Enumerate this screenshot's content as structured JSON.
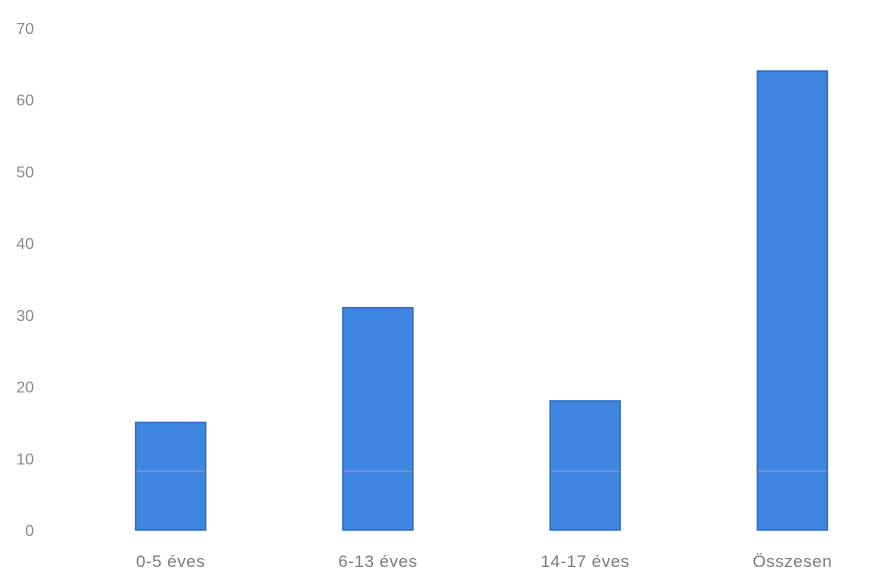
{
  "chart_data": {
    "type": "bar",
    "categories": [
      "0-5 éves",
      "6-13 éves",
      "14-17 éves",
      "Összesen"
    ],
    "values": [
      15,
      31,
      18,
      64
    ],
    "yticks": [
      "0",
      "10",
      "20",
      "30",
      "40",
      "50",
      "60",
      "70"
    ],
    "ylim": [
      0,
      70
    ],
    "grid": false,
    "legend": "none",
    "colors": {
      "bar": "#3f86e0",
      "bar_edge": "#2c6cc4",
      "stripe": "#c98fb0"
    }
  }
}
